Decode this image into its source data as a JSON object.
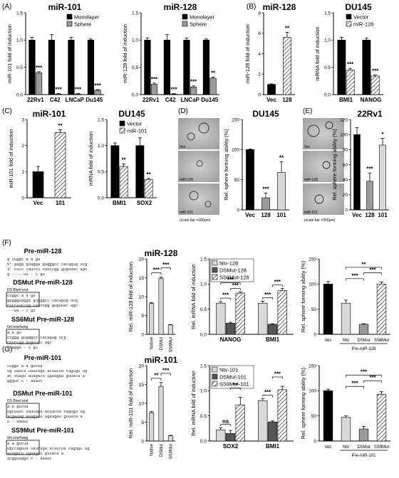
{
  "panel_letters": {
    "A": "(A)",
    "B": "(B)",
    "C": "(C)",
    "D": "(D)",
    "E": "(E)",
    "F": "(F)",
    "G": "(G)"
  },
  "colors": {
    "black": "#000000",
    "gray": "#9a9a9a",
    "light": "#d8d8d8",
    "hatch": "#555555",
    "white": "#ffffff"
  },
  "image_labels": {
    "D": [
      "Vec",
      "miR-128",
      "miR-101"
    ],
    "E": [
      "Vec",
      "miR-128",
      "miR-101"
    ],
    "scale_bar": "(scale bar =200μm)"
  },
  "hairpins": {
    "F": [
      {
        "title": "Pre-miR-128",
        "lines": [
          "g   cuggc      a       a        gu",
          "5'  gagg guagga   gugggcc cacagug  ucg",
          "3'  cucc cauccu   cauccgg guguuac  agc",
          "    g   -----uu  -       c        gu"
        ]
      },
      {
        "title": "DSMut Pre-miR-128",
        "box": "DS Blunt end",
        "lines": [
          "   cuggc    a       a       gu",
          "gaggguagga  gugggcc cacagug ucg",
          "cuccauccug  cauccgg guguuac agc",
          "  ---uu      -       c      gu"
        ]
      },
      {
        "title": "SS6Mut Pre-miR-128",
        "box": "6nt overhang",
        "lines": [
          "       a       a        gu",
          "ccggg  gugggcc cacagug  ucg",
          "       cauccgg guguuac  agc",
          "cuagga -       c        gu"
        ]
      }
    ],
    "G": [
      {
        "title": "Pre-miR-101",
        "lines": [
          "    cuggc       a        a       gucua",
          "ug  uauca  uaucuga acuucua cagugu ug",
          "ac  auagu  auagacu ugaagau guuaca  a",
          "    ggguc       c        -     aaauc"
        ]
      },
      {
        "title": "DSMut Pre-miR-101",
        "box": "DS Blunt end",
        "lines": [
          "          a        a       gucua",
          "ugcuauc  uaucuga acuucua cagugu ug",
          "acgauag  auagacu ugaagau guuaca  a",
          "          c        -     aaauc"
        ]
      },
      {
        "title": "SS9Mut Pre-miR-101",
        "box": "9nt overhang",
        "lines": [
          "           a        a       gucua",
          "ugccaguua  uaucuga acuucua cagugu ug",
          "           auagacu ugaagau guuaca  a",
          "acgguaggu  c        -     aaauc"
        ]
      }
    ]
  },
  "chart_data": [
    {
      "id": "A1",
      "type": "bar",
      "title": "miR-101",
      "ylabel": "miR-101 fold of induction",
      "ylim": [
        0,
        1.5
      ],
      "yticks": [
        "0.0",
        "0.5",
        "1.0",
        "1.5"
      ],
      "categories": [
        "22Rv1",
        "C42",
        "LNCaP",
        "Du145"
      ],
      "series": [
        {
          "name": "Monolayer",
          "values": [
            1.0,
            1.0,
            1.0,
            1.0
          ],
          "err": [
            0.05,
            0.1,
            0.05,
            0.02
          ]
        },
        {
          "name": "Sphere",
          "values": [
            0.4,
            0.01,
            0.01,
            0.08
          ],
          "err": [
            0.02,
            0.01,
            0.01,
            0.01
          ]
        }
      ],
      "sig": [
        "***",
        "***",
        "***",
        "***"
      ],
      "legend": "top-right"
    },
    {
      "id": "A2",
      "type": "bar",
      "title": "miR-128",
      "ylabel": "miR-128 fold of induction",
      "ylim": [
        0,
        1.5
      ],
      "yticks": [
        "0.0",
        "0.5",
        "1.0",
        "1.5"
      ],
      "categories": [
        "22Rv1",
        "C42",
        "LNCaP",
        "Du145"
      ],
      "series": [
        {
          "name": "Monolayer",
          "values": [
            1.0,
            1.0,
            1.0,
            1.0
          ],
          "err": [
            0.04,
            0.1,
            0.04,
            0.02
          ]
        },
        {
          "name": "Sphere",
          "values": [
            0.19,
            0.01,
            0.14,
            0.3
          ],
          "err": [
            0.02,
            0.01,
            0.02,
            0.02
          ]
        }
      ],
      "sig": [
        "***",
        "***",
        "***",
        "**"
      ],
      "legend": "top-right"
    },
    {
      "id": "B1",
      "type": "bar",
      "title": "miR-128",
      "ylabel": "miR-128 fold of induction",
      "ylim": [
        0,
        8
      ],
      "yticks": [
        "0",
        "2",
        "4",
        "6",
        "8"
      ],
      "categories": [
        "Vec",
        "128"
      ],
      "series": [
        {
          "name": "",
          "values": [
            1.0,
            5.6
          ],
          "err": [
            0.05,
            0.5
          ]
        }
      ],
      "sig": [
        "",
        "**"
      ]
    },
    {
      "id": "B2",
      "type": "bar",
      "title": "DU145",
      "ylabel": "mRNA fold of induction",
      "ylim": [
        0,
        1.5
      ],
      "yticks": [
        "0.0",
        "0.5",
        "1.0",
        "1.5"
      ],
      "categories": [
        "BMI1",
        "NANOG"
      ],
      "series": [
        {
          "name": "Vector",
          "values": [
            1.0,
            1.0
          ],
          "err": [
            0.05,
            0.04
          ]
        },
        {
          "name": "miR-128",
          "values": [
            0.45,
            0.34
          ],
          "err": [
            0.03,
            0.02
          ]
        }
      ],
      "sig": [
        "***",
        "***"
      ],
      "legend": "top-right"
    },
    {
      "id": "C1",
      "type": "bar",
      "title": "miR-101",
      "ylabel": "miR-101 fold of induction",
      "ylim": [
        0,
        3
      ],
      "yticks": [
        "0",
        "1",
        "2",
        "3"
      ],
      "categories": [
        "Vec",
        "101"
      ],
      "series": [
        {
          "name": "",
          "values": [
            1.0,
            2.5
          ],
          "err": [
            0.2,
            0.1
          ]
        }
      ],
      "sig": [
        "",
        "**"
      ]
    },
    {
      "id": "C2",
      "type": "bar",
      "title": "DU145",
      "ylabel": "mRNA fold of induction",
      "ylim": [
        0,
        1.5
      ],
      "yticks": [
        "0.0",
        "0.5",
        "1.0",
        "1.5"
      ],
      "categories": [
        "BMI1",
        "SOX2"
      ],
      "series": [
        {
          "name": "Vector",
          "values": [
            1.0,
            1.0
          ],
          "err": [
            0.05,
            0.15
          ]
        },
        {
          "name": "miR-101",
          "values": [
            0.6,
            0.35
          ],
          "err": [
            0.05,
            0.02
          ]
        }
      ],
      "sig": [
        "**",
        "**"
      ],
      "legend": "top-right"
    },
    {
      "id": "D",
      "type": "bar",
      "title": "DU145",
      "ylabel": "Rel. sphere forming ability (%)",
      "ylim": [
        0,
        150
      ],
      "yticks": [
        "0",
        "50",
        "100",
        "150"
      ],
      "categories": [
        "Vec",
        "128",
        "101"
      ],
      "series": [
        {
          "name": "",
          "values": [
            100,
            20,
            62
          ],
          "err": [
            1,
            8,
            18
          ]
        }
      ],
      "sig": [
        "",
        "***",
        "**"
      ]
    },
    {
      "id": "E",
      "type": "bar",
      "title": "22Rv1",
      "ylabel": "Rel. sphere forming ability (%)",
      "ylim": [
        0,
        120
      ],
      "yticks": [
        "0",
        "20",
        "40",
        "60",
        "80",
        "100",
        "120"
      ],
      "categories": [
        "Vec",
        "128",
        "101"
      ],
      "series": [
        {
          "name": "",
          "values": [
            100,
            38,
            86
          ],
          "err": [
            9,
            11,
            9
          ]
        }
      ],
      "sig": [
        "",
        "***",
        "*"
      ]
    },
    {
      "id": "F1",
      "type": "bar",
      "title": "miR-128",
      "ylabel": "Rel. miR-128 fold of induction",
      "ylim": [
        0,
        20
      ],
      "yticks": [
        "0",
        "5",
        "10",
        "15",
        "20"
      ],
      "categories": [
        "Native",
        "DSMut",
        "SS6Mut"
      ],
      "series": [
        {
          "name": "",
          "values": [
            8.2,
            14.8,
            2.5
          ],
          "err": [
            0.2,
            0.4,
            0.1
          ]
        }
      ],
      "brackets": [
        {
          "from": 0,
          "to": 1,
          "label": "***",
          "level": 0
        },
        {
          "from": 1,
          "to": 2,
          "label": "***",
          "level": 1
        }
      ]
    },
    {
      "id": "F2",
      "type": "bar",
      "title": "",
      "ylabel": "Rel. mRNA fold of induction",
      "ylim": [
        0,
        1.5
      ],
      "yticks": [
        "0.0",
        "0.5",
        "1.0",
        "1.5"
      ],
      "categories": [
        "NANOG",
        "BMI1"
      ],
      "series": [
        {
          "name": "Ntv-128",
          "values": [
            0.62,
            0.62
          ],
          "err": [
            0.03,
            0.04
          ]
        },
        {
          "name": "DSMut-128",
          "values": [
            0.22,
            0.2
          ],
          "err": [
            0.02,
            0.01
          ]
        },
        {
          "name": "SS6Mut-128",
          "values": [
            0.82,
            0.87
          ],
          "err": [
            0.02,
            0.04
          ]
        }
      ],
      "group_brackets": [
        [
          {
            "a": 0,
            "b": 1,
            "label": "***",
            "level": 0
          },
          {
            "a": 1,
            "b": 2,
            "label": "***",
            "level": 0
          },
          {
            "a": 0,
            "b": 2,
            "label": "***",
            "level": 1
          }
        ],
        [
          {
            "a": 0,
            "b": 1,
            "label": "***",
            "level": 0
          },
          {
            "a": 1,
            "b": 2,
            "label": "***",
            "level": 0
          }
        ]
      ],
      "legend": "top-left"
    },
    {
      "id": "F3",
      "type": "bar",
      "title": "",
      "ylabel": "Rel. sphere forming ability (%)",
      "ylim": [
        0,
        150
      ],
      "yticks": [
        "0",
        "50",
        "100",
        "150"
      ],
      "categories": [
        "Vec",
        "Ntv",
        "DSMut",
        "SS6Mut"
      ],
      "group_label": "Pre-miR-128",
      "series": [
        {
          "name": "",
          "values": [
            100,
            62,
            20,
            100
          ],
          "err": [
            5,
            6,
            1,
            4
          ]
        }
      ],
      "brackets": [
        {
          "from": 1,
          "to": 2,
          "label": "***",
          "level": 0
        },
        {
          "from": 2,
          "to": 3,
          "label": "***",
          "level": 1
        },
        {
          "from": 1,
          "to": 3,
          "label": "**",
          "level": 2
        }
      ]
    },
    {
      "id": "G1",
      "type": "bar",
      "title": "miR-101",
      "ylabel": "Rel. miR-101 fold of induction",
      "ylim": [
        0,
        20
      ],
      "yticks": [
        "0",
        "5",
        "10",
        "15",
        "20"
      ],
      "categories": [
        "Native",
        "DSMut",
        "SS9Mut"
      ],
      "series": [
        {
          "name": "",
          "values": [
            7.5,
            14.5,
            1.4
          ],
          "err": [
            0.3,
            1.0,
            0.1
          ]
        }
      ],
      "brackets": [
        {
          "from": 0,
          "to": 1,
          "label": "**",
          "level": 0
        },
        {
          "from": 1,
          "to": 2,
          "label": "***",
          "level": 1
        }
      ]
    },
    {
      "id": "G2",
      "type": "bar",
      "title": "",
      "ylabel": "Rel. mRNA fold of induction",
      "ylim": [
        0,
        1.5
      ],
      "yticks": [
        "0.0",
        "0.5",
        "1.0",
        "1.5"
      ],
      "categories": [
        "SOX2",
        "BMI1"
      ],
      "series": [
        {
          "name": "Ntv-101",
          "values": [
            0.22,
            0.8
          ],
          "err": [
            0.04,
            0.04
          ]
        },
        {
          "name": "DSMut-101",
          "values": [
            0.15,
            0.38
          ],
          "err": [
            0.06,
            0.02
          ]
        },
        {
          "name": "SS9Mut-101",
          "values": [
            0.72,
            1.02
          ],
          "err": [
            0.15,
            0.07
          ]
        }
      ],
      "group_brackets": [
        [
          {
            "a": 0,
            "b": 1,
            "label": "ns",
            "level": 0
          },
          {
            "a": 1,
            "b": 2,
            "label": "**",
            "level": 1
          }
        ],
        [
          {
            "a": 0,
            "b": 1,
            "label": "***",
            "level": 0
          },
          {
            "a": 1,
            "b": 2,
            "label": "***",
            "level": 1
          }
        ]
      ],
      "legend": "top-left"
    },
    {
      "id": "G3",
      "type": "bar",
      "title": "",
      "ylabel": "Rel. sphere forming ability (%)",
      "ylim": [
        0,
        150
      ],
      "yticks": [
        "0",
        "50",
        "100",
        "150"
      ],
      "categories": [
        "Vec",
        "Ntv",
        "DSMut",
        "SS9Mut"
      ],
      "group_label": "Pre-miR-101",
      "series": [
        {
          "name": "",
          "values": [
            100,
            47,
            24,
            93
          ],
          "err": [
            3,
            3,
            5,
            5
          ]
        }
      ],
      "brackets": [
        {
          "from": 1,
          "to": 2,
          "label": "***",
          "level": 0
        },
        {
          "from": 2,
          "to": 3,
          "label": "***",
          "level": 1
        },
        {
          "from": 1,
          "to": 3,
          "label": "***",
          "level": 2
        }
      ]
    }
  ]
}
